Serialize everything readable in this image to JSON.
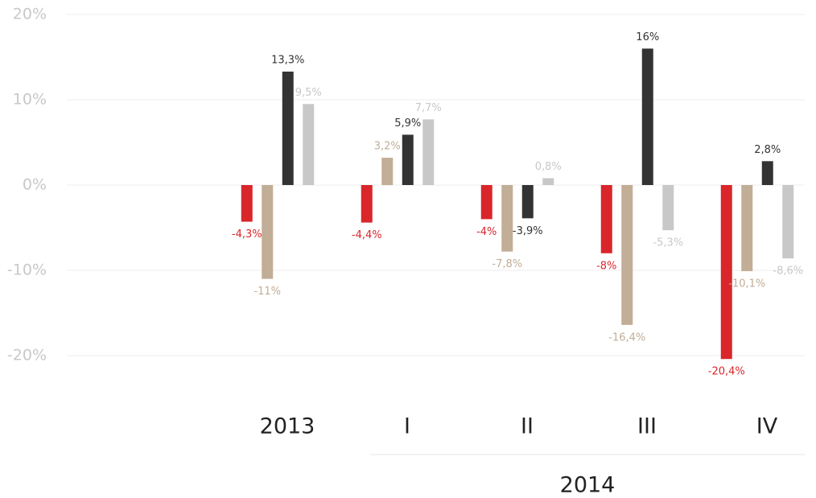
{
  "chart_data": {
    "type": "bar",
    "categories": [
      "2013",
      "I",
      "II",
      "III",
      "IV"
    ],
    "group_label": "2014",
    "series": [
      {
        "color": "#d9262b",
        "values": [
          -4.3,
          -4.4,
          -4,
          -8,
          -20.4
        ],
        "value_labels": [
          "-4,3%",
          "-4,4%",
          "-4%",
          "-8%",
          "-20,4%"
        ]
      },
      {
        "color": "#c2ad96",
        "values": [
          -11,
          3.2,
          -7.8,
          -16.4,
          -10.1
        ],
        "value_labels": [
          "-11%",
          "3,2%",
          "-7,8%",
          "-16,4%",
          "-10,1%"
        ]
      },
      {
        "color": "#333333",
        "values": [
          13.3,
          5.9,
          -3.9,
          16,
          2.8
        ],
        "value_labels": [
          "13,3%",
          "5,9%",
          "-3,9%",
          "16%",
          "2,8%"
        ]
      },
      {
        "color": "#c8c8c8",
        "values": [
          9.5,
          7.7,
          0.8,
          -5.3,
          -8.6
        ],
        "value_labels": [
          "9,5%",
          "7,7%",
          "0,8%",
          "-5,3%",
          "-8,6%"
        ]
      }
    ],
    "ylim": [
      -25,
      20
    ],
    "yticks": [
      {
        "value": -20,
        "label": "-20%"
      },
      {
        "value": -10,
        "label": "-10%"
      },
      {
        "value": 0,
        "label": "0%"
      },
      {
        "value": 10,
        "label": "10%"
      },
      {
        "value": 20,
        "label": "20%"
      }
    ],
    "grid": true
  }
}
